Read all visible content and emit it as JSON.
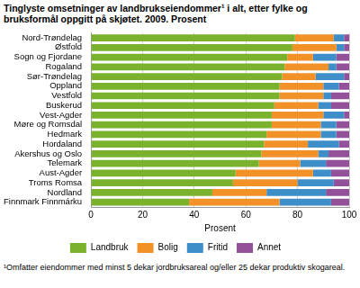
{
  "chart_data": {
    "type": "bar",
    "orientation": "horizontal",
    "stacked": true,
    "title": "Tinglyste omsetninger av landbrukseiendommer¹ i alt, etter fylke og bruksformål oppgitt på skjøtet. 2009. Prosent",
    "x_label": "Prosent",
    "annotations": [
      "¹Omfatter eiendommer med minst 5 dekar jordbruksareal og/eller 25 dekar produktiv skogareal."
    ],
    "categories": [
      "Nord-Trøndelag",
      "Østfold",
      "Sogn og Fjordane",
      "Rogaland",
      "Sør-Trøndelag",
      "Oppland",
      "Vestfold",
      "Buskerud",
      "Vest-Agder",
      "Møre og Romsdal",
      "Hedmark",
      "Hordaland",
      "Akershus og Oslo",
      "Telemark",
      "Aust-Agder",
      "Troms Romsa",
      "Nordland",
      "Finnmark Finnmárku"
    ],
    "series": [
      {
        "name": "Landbruk",
        "color": "#7ab22e",
        "values": [
          79,
          78,
          76,
          75,
          74,
          73,
          73,
          71,
          70,
          70,
          68,
          67,
          66,
          65,
          56,
          55,
          47,
          38
        ]
      },
      {
        "name": "Bolig",
        "color": "#f39129",
        "values": [
          15,
          17,
          10,
          17,
          13,
          17,
          17,
          17,
          20,
          19,
          21,
          17,
          22,
          16,
          30,
          25,
          21,
          35
        ]
      },
      {
        "name": "Fritid",
        "color": "#3d8ec9",
        "values": [
          4,
          3,
          9,
          3,
          11,
          6,
          3,
          5,
          8,
          6,
          6,
          12,
          4,
          10,
          7,
          14,
          23,
          20
        ]
      },
      {
        "name": "Annet",
        "color": "#93519a",
        "values": [
          2,
          2,
          5,
          5,
          2,
          4,
          7,
          7,
          2,
          5,
          5,
          4,
          8,
          9,
          7,
          6,
          9,
          7
        ]
      }
    ],
    "xlim": [
      0,
      100
    ],
    "xticks": [
      0,
      20,
      40,
      60,
      80,
      100
    ],
    "grid": true,
    "legend": "bottom"
  }
}
